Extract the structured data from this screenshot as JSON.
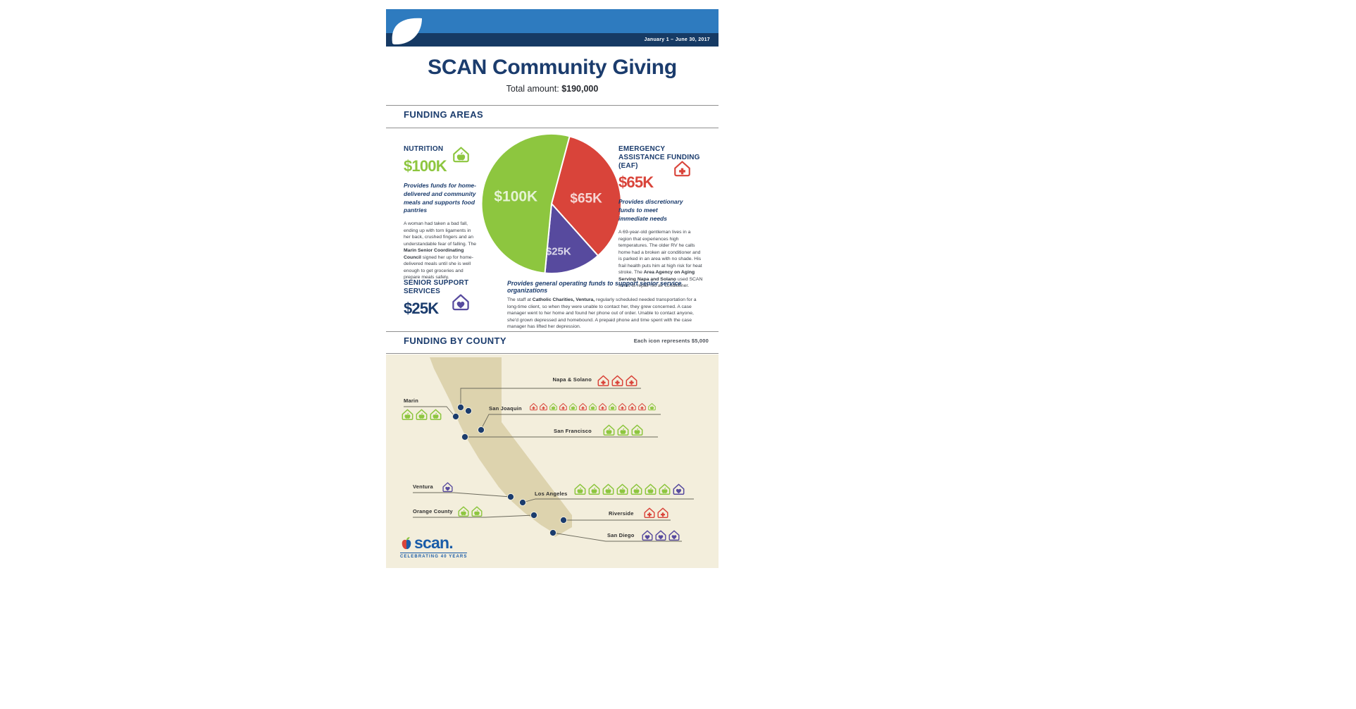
{
  "palette": {
    "navy": "#1b3c6d",
    "header_blue": "#2e7bbf",
    "stripe_navy": "#163a64",
    "nutrition_green": "#8dc63f",
    "eaf_red": "#d9443a",
    "senior_purple": "#574a9e",
    "map_beige": "#f3eedc",
    "map_tan": "#ddd3ae",
    "logo_blue": "#1a5ca8"
  },
  "header": {
    "date_range": "January 1 – June 30, 2017",
    "title": "SCAN Community Giving",
    "total_label": "Total amount:",
    "total_value": "$190,000"
  },
  "funding_areas_section": {
    "heading": "FUNDING AREAS"
  },
  "funding_by_county_section": {
    "heading": "FUNDING BY COUNTY",
    "legend": "Each icon represents $5,000"
  },
  "areas": [
    {
      "id": "nutrition",
      "name": "NUTRITION",
      "amount": "$100K",
      "icon": "house-apple-icon",
      "description": "Provides funds for home-delivered and community meals and supports food pantries",
      "story": {
        "pre": "A woman had taken a bad fall, ending up with torn ligaments in her back, crushed fingers and an understandable fear of falling. The ",
        "highlight": "Marin Senior Coordinating Council",
        "post": " signed her up for home-delivered meals until she is well enough to get groceries and prepare meals safely."
      }
    },
    {
      "id": "eaf",
      "name": "EMERGENCY ASSISTANCE FUNDING (EAF)",
      "amount": "$65K",
      "icon": "house-cross-icon",
      "description": "Provides discretionary funds to meet immediate needs",
      "story": {
        "pre": "A 69-year-old gentleman lives in a region that experiences high temperatures. The older RV he calls home had a broken air conditioner and is parked in an area with no shade. His frail health puts him at high risk for heat stroke. The ",
        "highlight": "Area Agency on Aging Serving Napa and Solano",
        "post": " used SCAN funds to repair his air conditioner."
      }
    },
    {
      "id": "senior",
      "name": "SENIOR SUPPORT SERVICES",
      "amount": "$25K",
      "icon": "house-heart-icon",
      "description": "Provides general operating funds to support senior service organizations",
      "story": {
        "pre": "The staff at ",
        "highlight": "Catholic Charities, Ventura,",
        "post": " regularly scheduled needed transportation for a long-time client, so when they were unable to contact her, they grew concerned. A case manager went to her home and found her phone out of order. Unable to contact anyone, she'd grown depressed and homebound. A prepaid phone and time spent with the case manager has lifted her depression."
      }
    }
  ],
  "chart_data": [
    {
      "type": "pie",
      "title": "SCAN Community Giving funding areas",
      "total": 190000,
      "legend_position": "none",
      "slices": [
        {
          "id": "nutrition",
          "name": "Nutrition",
          "label": "$100K",
          "value": 100000,
          "color": "#8dc63f"
        },
        {
          "id": "eaf",
          "name": "Emergency Assistance Funding (EAF)",
          "label": "$65K",
          "value": 65000,
          "color": "#d9443a"
        },
        {
          "id": "senior",
          "name": "Senior Support Services",
          "label": "$25K",
          "value": 25000,
          "color": "#574a9e"
        }
      ]
    },
    {
      "type": "pictograph",
      "title": "Funding by county",
      "unit_per_icon": 5000,
      "counties": [
        {
          "id": "napa_solano",
          "name": "Napa & Solano",
          "icons": [
            "eaf",
            "eaf",
            "eaf"
          ],
          "total": 15000
        },
        {
          "id": "marin",
          "name": "Marin",
          "icons": [
            "nutrition",
            "nutrition",
            "nutrition"
          ],
          "total": 15000
        },
        {
          "id": "san_joaquin",
          "name": "San Joaquin",
          "icons": [
            "eaf",
            "eaf",
            "nutrition",
            "eaf",
            "nutrition",
            "eaf",
            "nutrition",
            "eaf",
            "nutrition",
            "eaf",
            "eaf",
            "eaf",
            "nutrition"
          ],
          "total": 65000
        },
        {
          "id": "san_francisco",
          "name": "San Francisco",
          "icons": [
            "nutrition",
            "nutrition",
            "nutrition"
          ],
          "total": 15000
        },
        {
          "id": "ventura",
          "name": "Ventura",
          "icons": [
            "senior"
          ],
          "total": 5000
        },
        {
          "id": "los_angeles",
          "name": "Los Angeles",
          "icons": [
            "nutrition",
            "nutrition",
            "nutrition",
            "nutrition",
            "nutrition",
            "nutrition",
            "nutrition",
            "senior"
          ],
          "total": 40000
        },
        {
          "id": "orange_county",
          "name": "Orange County",
          "icons": [
            "nutrition",
            "nutrition"
          ],
          "total": 10000
        },
        {
          "id": "riverside",
          "name": "Riverside",
          "icons": [
            "eaf",
            "eaf"
          ],
          "total": 10000
        },
        {
          "id": "san_diego",
          "name": "San Diego",
          "icons": [
            "senior",
            "senior",
            "senior"
          ],
          "total": 15000
        }
      ]
    }
  ],
  "logo": {
    "wordmark": "scan.",
    "tagline": "CELEBRATING 40 YEARS"
  }
}
